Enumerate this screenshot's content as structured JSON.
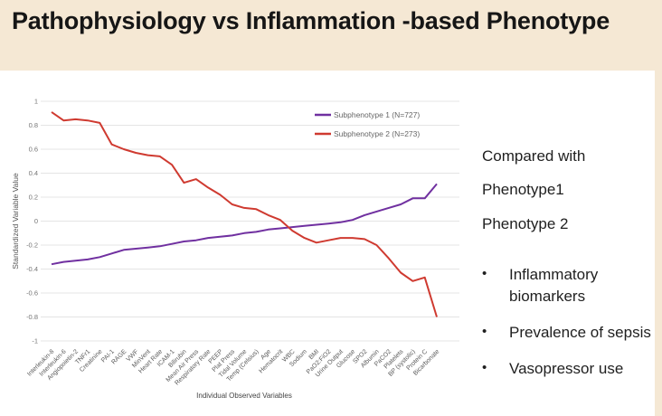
{
  "slide": {
    "title": "Pathophysiology vs Inflammation -based Phenotype"
  },
  "side_panel": {
    "line1": "Compared with",
    "line2": "Phenotype1",
    "line3": "Phenotype 2",
    "bullets": [
      "Inflammatory biomarkers",
      "Prevalence of sepsis",
      "Vasopressor use"
    ]
  },
  "colors": {
    "band_background": "#f5e8d4",
    "content_background": "#ffffff",
    "subphenotype1_line": "#7030a0",
    "subphenotype2_line": "#cf3a30",
    "gridline": "#e4e4e4",
    "axis_text": "#757575",
    "body_text": "#1f1f1f"
  },
  "chart_data": {
    "type": "line",
    "title": "",
    "xlabel": "Individual Observed Variables",
    "ylabel": "Standardized Variable Value",
    "ylim": [
      -1,
      1
    ],
    "ytick_step": 0.2,
    "grid": true,
    "legend_position": "top-right inside",
    "categories": [
      "Interleukin-8",
      "Interleukin-6",
      "Angiopoietin-2",
      "TNFr1",
      "Creatinine",
      "PAI-1",
      "RAGE",
      "VWF",
      "MinVent",
      "Heart Rate",
      "ICAM-1",
      "Bilirubin",
      "Mean Air Press",
      "Respiratory Rate",
      "PEEP",
      "Plat Press",
      "Tidal Volume",
      "Temp (Celsius)",
      "Age",
      "Hematocrit",
      "WBC",
      "Sodium",
      "BMI",
      "PaO2:FiO2",
      "Urine Output",
      "Glucose",
      "SPO2",
      "Albumin",
      "PaCO2",
      "Platelets",
      "BP (systolic)",
      "Protein C",
      "Bicarbonate"
    ],
    "series": [
      {
        "name": "Subphenotype 1 (N=727)",
        "color": "#7030a0",
        "values": [
          -0.36,
          -0.34,
          -0.33,
          -0.32,
          -0.3,
          -0.27,
          -0.24,
          -0.23,
          -0.22,
          -0.21,
          -0.19,
          -0.17,
          -0.16,
          -0.14,
          -0.13,
          -0.12,
          -0.1,
          -0.09,
          -0.07,
          -0.06,
          -0.05,
          -0.04,
          -0.03,
          -0.02,
          -0.01,
          0.01,
          0.05,
          0.08,
          0.11,
          0.14,
          0.19,
          0.19,
          0.31
        ]
      },
      {
        "name": "Subphenotype 2 (N=273)",
        "color": "#cf3a30",
        "values": [
          0.91,
          0.84,
          0.85,
          0.84,
          0.82,
          0.64,
          0.6,
          0.57,
          0.55,
          0.54,
          0.47,
          0.32,
          0.35,
          0.28,
          0.22,
          0.14,
          0.11,
          0.1,
          0.05,
          0.01,
          -0.08,
          -0.14,
          -0.18,
          -0.16,
          -0.14,
          -0.14,
          -0.15,
          -0.2,
          -0.31,
          -0.43,
          -0.5,
          -0.47,
          -0.8
        ]
      }
    ]
  }
}
